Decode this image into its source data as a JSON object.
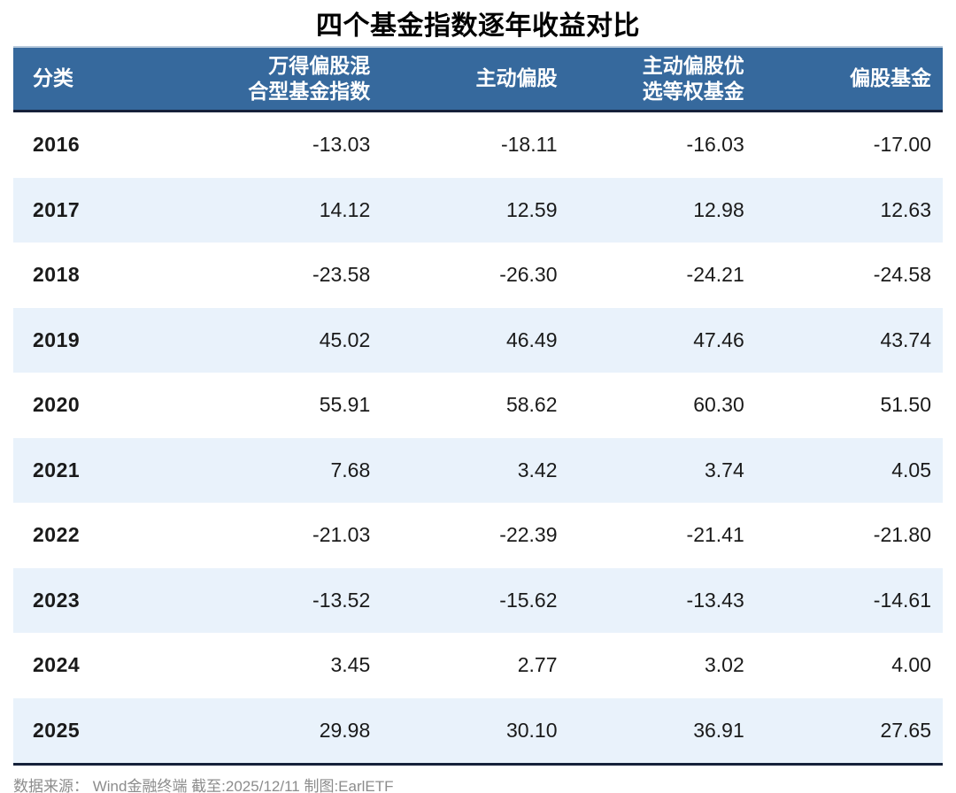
{
  "title": "四个基金指数逐年收益对比",
  "table": {
    "columns": [
      {
        "id": "category",
        "label": "分类"
      },
      {
        "id": "wind-hybrid-equity-index",
        "line1": "万得偏股混",
        "line2": "合型基金指数"
      },
      {
        "id": "active-equity",
        "label": "主动偏股"
      },
      {
        "id": "active-equity-select-equal-weight",
        "line1": "主动偏股优",
        "line2": "选等权基金"
      },
      {
        "id": "equity-fund",
        "label": "偏股基金"
      }
    ],
    "rows": [
      {
        "year": "2016",
        "values": [
          "-13.03",
          "-18.11",
          "-16.03",
          "-17.00"
        ]
      },
      {
        "year": "2017",
        "values": [
          "14.12",
          "12.59",
          "12.98",
          "12.63"
        ]
      },
      {
        "year": "2018",
        "values": [
          "-23.58",
          "-26.30",
          "-24.21",
          "-24.58"
        ]
      },
      {
        "year": "2019",
        "values": [
          "45.02",
          "46.49",
          "47.46",
          "43.74"
        ]
      },
      {
        "year": "2020",
        "values": [
          "55.91",
          "58.62",
          "60.30",
          "51.50"
        ]
      },
      {
        "year": "2021",
        "values": [
          "7.68",
          "3.42",
          "3.74",
          "4.05"
        ]
      },
      {
        "year": "2022",
        "values": [
          "-21.03",
          "-22.39",
          "-21.41",
          "-21.80"
        ]
      },
      {
        "year": "2023",
        "values": [
          "-13.52",
          "-15.62",
          "-13.43",
          "-14.61"
        ]
      },
      {
        "year": "2024",
        "values": [
          "3.45",
          "2.77",
          "3.02",
          "4.00"
        ]
      },
      {
        "year": "2025",
        "values": [
          "29.98",
          "30.10",
          "36.91",
          "27.65"
        ]
      }
    ]
  },
  "footer": {
    "source_note": "数据来源： Wind金融终端 截至:2025/12/11 制图:EarlETF"
  },
  "colors": {
    "header_bg": "#36699D",
    "header_top_line": "#b7c9db",
    "border_dark": "#16213a",
    "stripe_bg": "#e9f2fb",
    "footer_text": "#8c8c8c",
    "title_text": "#000000",
    "body_text": "#1a1a1a"
  },
  "chart_data": {
    "type": "table",
    "title": "四个基金指数逐年收益对比",
    "categories": [
      "2016",
      "2017",
      "2018",
      "2019",
      "2020",
      "2021",
      "2022",
      "2023",
      "2024",
      "2025"
    ],
    "series": [
      {
        "name": "万得偏股混合型基金指数",
        "values": [
          -13.03,
          14.12,
          -23.58,
          45.02,
          55.91,
          7.68,
          -21.03,
          -13.52,
          3.45,
          29.98
        ]
      },
      {
        "name": "主动偏股",
        "values": [
          -18.11,
          12.59,
          -26.3,
          46.49,
          58.62,
          3.42,
          -22.39,
          -15.62,
          2.77,
          30.1
        ]
      },
      {
        "name": "主动偏股优选等权基金",
        "values": [
          -16.03,
          12.98,
          -24.21,
          47.46,
          60.3,
          3.74,
          -21.41,
          -13.43,
          3.02,
          36.91
        ]
      },
      {
        "name": "偏股基金",
        "values": [
          -17.0,
          12.63,
          -24.58,
          43.74,
          51.5,
          4.05,
          -21.8,
          -14.61,
          4.0,
          27.65
        ]
      }
    ],
    "layout": {
      "row_striping": true,
      "values_unit": "percent",
      "source": "Wind金融终端 截至:2025/12/11 制图:EarlETF"
    }
  }
}
